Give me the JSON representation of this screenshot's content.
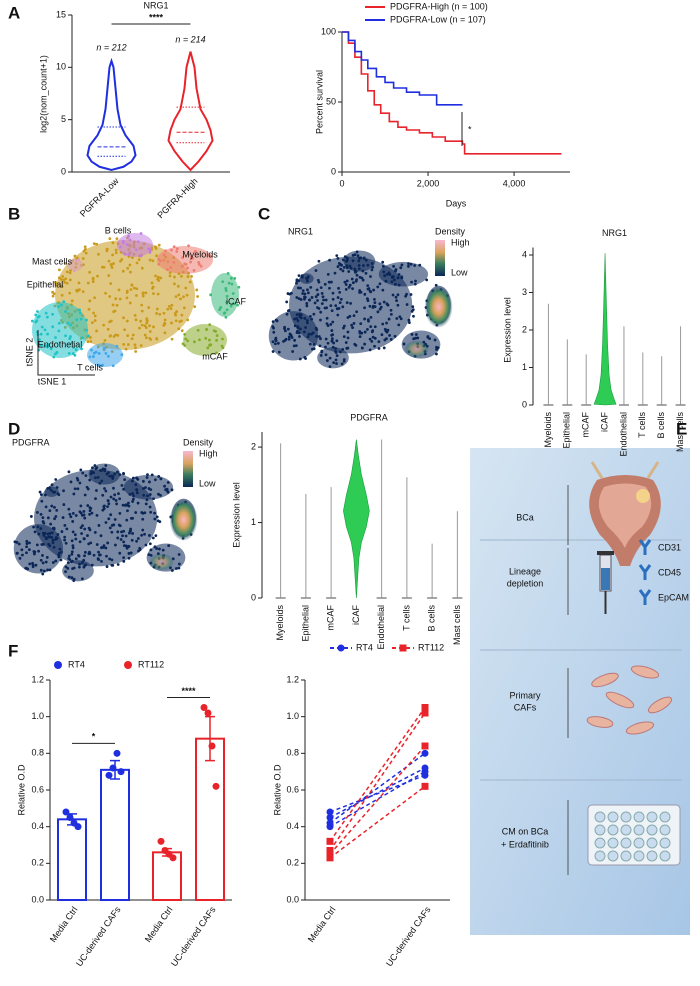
{
  "panel_labels": [
    "A",
    "B",
    "C",
    "D",
    "E",
    "F"
  ],
  "chart_data": [
    {
      "type": "violin",
      "title": "NRG1",
      "ylabel": "log2(nom_count+1)",
      "significance": "****",
      "n_labels": [
        "n = 212",
        "n = 214"
      ],
      "categories": [
        "PGFRA-Low",
        "PGFRA-High"
      ],
      "colors": [
        "#1f2fe0",
        "#e8232a"
      ],
      "ylim": [
        0,
        15
      ],
      "yticks": [
        0,
        5,
        10,
        15
      ]
    },
    {
      "type": "line",
      "ylabel": "Percent survival",
      "xlabel": "Days",
      "significance": "*",
      "series": [
        {
          "name": "PDGFRA-High (n = 100)",
          "color": "#e8232a",
          "x": [
            0,
            150,
            300,
            450,
            600,
            750,
            900,
            1100,
            1300,
            1500,
            1800,
            2100,
            2400,
            2800,
            2850,
            5100
          ],
          "values": [
            100,
            92,
            82,
            70,
            58,
            48,
            42,
            36,
            32,
            30,
            28,
            25,
            22,
            20,
            13,
            13
          ]
        },
        {
          "name": "PDGFRA-Low (n = 107)",
          "color": "#1f2fe0",
          "x": [
            0,
            150,
            300,
            450,
            600,
            800,
            1000,
            1200,
            1500,
            1800,
            2200,
            2800
          ],
          "values": [
            100,
            94,
            86,
            80,
            74,
            68,
            64,
            60,
            57,
            55,
            48,
            48
          ]
        }
      ],
      "xlim": [
        0,
        5300
      ],
      "xticks": [
        0,
        {
          "value": 2000,
          "label": "2,000"
        },
        {
          "value": 4000,
          "label": "4,000"
        }
      ],
      "ylim": [
        0,
        100
      ],
      "yticks": [
        0,
        50,
        100
      ]
    },
    {
      "type": "violin",
      "title": "NRG1",
      "ylabel": "Expression level",
      "categories": [
        "Myeloids",
        "Epithelial",
        "mCAF",
        "iCAF",
        "Endothelial",
        "T cells",
        "B cells",
        "Mast cells"
      ],
      "values": [
        2.7,
        1.75,
        1.35,
        4.05,
        2.1,
        1.4,
        1.3,
        2.1
      ],
      "color": "#2ecc55",
      "ylim": [
        0,
        4.2
      ],
      "yticks": [
        0,
        1,
        2,
        3,
        4
      ]
    },
    {
      "type": "violin",
      "title": "PDGFRA",
      "ylabel": "Expression level",
      "categories": [
        "Myeloids",
        "Epithelial",
        "mCAF",
        "iCAF",
        "Endothelial",
        "T cells",
        "B cells",
        "Mast cells"
      ],
      "values": [
        2.05,
        1.38,
        1.47,
        2.1,
        2.1,
        1.6,
        0.72,
        1.15
      ],
      "color": "#2ecc55",
      "ylim": [
        0,
        2.2
      ],
      "yticks": [
        0,
        1,
        2
      ]
    },
    {
      "type": "bar",
      "ylabel": "Relative O.D",
      "categories": [
        "Media Ctrl",
        "UC-derived CAFs"
      ],
      "significance": [
        "*",
        "****"
      ],
      "series": [
        {
          "name": "RT4",
          "color": "#1f2fe0",
          "values": [
            0.44,
            0.71
          ],
          "errors": [
            0.03,
            0.05
          ],
          "replicates": [
            [
              0.48,
              0.45,
              0.42,
              0.4
            ],
            [
              0.68,
              0.72,
              0.8,
              0.7
            ]
          ]
        },
        {
          "name": "RT112",
          "color": "#e8232a",
          "values": [
            0.26,
            0.88
          ],
          "errors": [
            0.02,
            0.12
          ],
          "replicates": [
            [
              0.32,
              0.27,
              0.25,
              0.23
            ],
            [
              1.05,
              1.02,
              0.84,
              0.62
            ]
          ]
        }
      ],
      "ylim": [
        0,
        1.2
      ],
      "yticks": [
        {
          "value": 0,
          "label": "0.0"
        },
        0.2,
        0.4,
        0.6,
        0.8,
        {
          "value": 1,
          "label": "1.0"
        },
        1.2
      ]
    },
    {
      "type": "paired",
      "ylabel": "Relative O.D",
      "categories": [
        "Media Ctrl",
        "UC-derived CAFs"
      ],
      "series": [
        {
          "name": "RT4",
          "color": "#1f2fe0",
          "replicates": [
            [
              0.48,
              0.68
            ],
            [
              0.45,
              0.72
            ],
            [
              0.42,
              0.8
            ],
            [
              0.4,
              0.7
            ]
          ]
        },
        {
          "name": "RT112",
          "color": "#e8232a",
          "replicates": [
            [
              0.32,
              1.05
            ],
            [
              0.27,
              1.02
            ],
            [
              0.25,
              0.84
            ],
            [
              0.23,
              0.62
            ]
          ]
        }
      ],
      "ylim": [
        0,
        1.2
      ],
      "yticks": [
        {
          "value": 0,
          "label": "0.0"
        },
        0.2,
        0.4,
        0.6,
        0.8,
        {
          "value": 1,
          "label": "1.0"
        },
        1.2
      ]
    }
  ],
  "tsne": {
    "labels": [
      "B cells",
      "Myeloids",
      "Mast cells",
      "Epithelial",
      "iCAF",
      "Endothelial",
      "mCAF",
      "T cells"
    ],
    "y_label": "tSNE 2",
    "x_label": "tSNE 1"
  },
  "density_maps": [
    {
      "title": "NRG1",
      "legend_title": "Density",
      "high": "High",
      "low": "Low"
    },
    {
      "title": "PDGFRA",
      "legend_title": "Density",
      "high": "High",
      "low": "Low"
    }
  ],
  "schematic": {
    "steps": [
      {
        "label_lines": [
          "BCa"
        ]
      },
      {
        "label_lines": [
          "Lineage",
          "depletion"
        ],
        "markers": [
          "CD31",
          "CD45",
          "EpCAM"
        ]
      },
      {
        "label_lines": [
          "Primary",
          "CAFs"
        ]
      },
      {
        "label_lines": [
          "CM on BCa",
          "+ Erdafitinib"
        ]
      }
    ]
  }
}
